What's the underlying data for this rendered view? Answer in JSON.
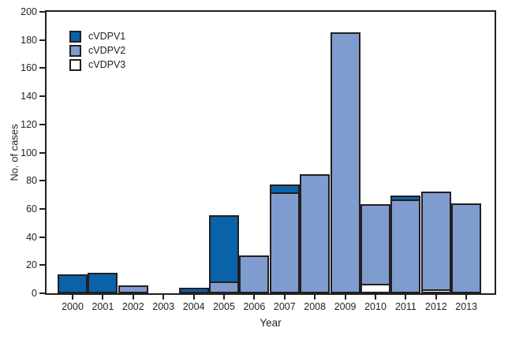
{
  "figure": {
    "background": "#ffffff"
  },
  "colors": {
    "cVDPV1": "#0a62a8",
    "cVDPV2": "#7f9ccf",
    "cVDPV3": "#ffffff",
    "axis_and_border": "#231f20",
    "text": "#231f20"
  },
  "axes": {
    "y_label": "No. of cases",
    "x_label": "Year",
    "y_ticks": [
      0,
      20,
      40,
      60,
      80,
      100,
      120,
      140,
      160,
      180,
      200
    ]
  },
  "legend": [
    {
      "label": "cVDPV1",
      "color": "#0a62a8"
    },
    {
      "label": "cVDPV2",
      "color": "#7f9ccf"
    },
    {
      "label": "cVDPV3",
      "color": "#ffffff"
    }
  ],
  "chart_data": {
    "type": "bar",
    "stacked": true,
    "title": "",
    "xlabel": "Year",
    "ylabel": "No. of cases",
    "ylim": [
      0,
      200
    ],
    "ytick_step": 20,
    "grid": false,
    "legend_position": "top-left-inside",
    "categories": [
      "2000",
      "2001",
      "2002",
      "2003",
      "2004",
      "2005",
      "2006",
      "2007",
      "2008",
      "2009",
      "2010",
      "2011",
      "2012",
      "2013"
    ],
    "series": [
      {
        "name": "cVDPV1",
        "color": "#0a62a8",
        "values": [
          12,
          13,
          0,
          0,
          2,
          46,
          0,
          5,
          0,
          0,
          0,
          2,
          0,
          0
        ]
      },
      {
        "name": "cVDPV2",
        "color": "#7f9ccf",
        "values": [
          0,
          0,
          4,
          0,
          0,
          7,
          25,
          70,
          83,
          184,
          56,
          65,
          69,
          62
        ]
      },
      {
        "name": "cVDPV3",
        "color": "#ffffff",
        "values": [
          0,
          0,
          0,
          0,
          0,
          0,
          0,
          0,
          0,
          0,
          5,
          0,
          1,
          0
        ]
      }
    ],
    "stack_order_bottom_to_top": [
      "cVDPV3",
      "cVDPV2",
      "cVDPV1"
    ],
    "totals_by_year": [
      12,
      13,
      4,
      0,
      2,
      53,
      25,
      75,
      83,
      184,
      61,
      67,
      70,
      62
    ]
  }
}
